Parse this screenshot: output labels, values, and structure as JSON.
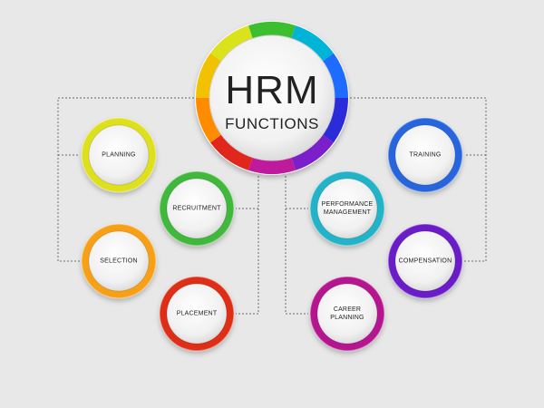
{
  "center": {
    "title": "HRM",
    "subtitle": "FUNCTIONS",
    "ring_colors": [
      "#00b4d8",
      "#1e6bff",
      "#2b2bd9",
      "#7a1fc9",
      "#c01a9c",
      "#e1271b",
      "#ff8c00",
      "#f2c200",
      "#d9e21a",
      "#3bbf2e"
    ]
  },
  "nodes": [
    {
      "label": "PLANNING",
      "color": "#dfe01c"
    },
    {
      "label": "SELECTION",
      "color": "#f7a012"
    },
    {
      "label": "RECRUITMENT",
      "color": "#3fb83a"
    },
    {
      "label": "PLACEMENT",
      "color": "#df2e16"
    },
    {
      "label": "PERFORMANCE MANAGEMENT",
      "color": "#21b3c9"
    },
    {
      "label": "CAREER PLANNING",
      "color": "#b5168f"
    },
    {
      "label": "TRAINING",
      "color": "#2565de"
    },
    {
      "label": "COMPENSATION",
      "color": "#6a1ec9"
    }
  ]
}
